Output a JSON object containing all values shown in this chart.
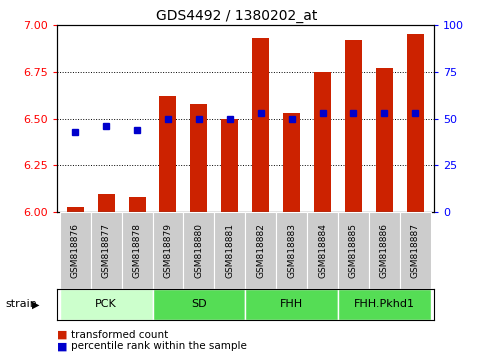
{
  "title": "GDS4492 / 1380202_at",
  "samples": [
    "GSM818876",
    "GSM818877",
    "GSM818878",
    "GSM818879",
    "GSM818880",
    "GSM818881",
    "GSM818882",
    "GSM818883",
    "GSM818884",
    "GSM818885",
    "GSM818886",
    "GSM818887"
  ],
  "transformed_counts": [
    6.03,
    6.1,
    6.08,
    6.62,
    6.58,
    6.5,
    6.93,
    6.53,
    6.75,
    6.92,
    6.77,
    6.95
  ],
  "percentile_ranks": [
    43,
    46,
    44,
    50,
    50,
    50,
    53,
    50,
    53,
    53,
    53,
    53
  ],
  "ylim_left": [
    6.0,
    7.0
  ],
  "ylim_right": [
    0,
    100
  ],
  "yticks_left": [
    6.0,
    6.25,
    6.5,
    6.75,
    7.0
  ],
  "yticks_right": [
    0,
    25,
    50,
    75,
    100
  ],
  "bar_color": "#cc2200",
  "dot_color": "#0000cc",
  "bar_width": 0.55,
  "legend_items": [
    "transformed count",
    "percentile rank within the sample"
  ],
  "legend_colors": [
    "#cc2200",
    "#0000cc"
  ],
  "groups": [
    {
      "label": "PCK",
      "start": 0,
      "end": 2,
      "color": "#ccffcc"
    },
    {
      "label": "SD",
      "start": 3,
      "end": 5,
      "color": "#55dd55"
    },
    {
      "label": "FHH",
      "start": 6,
      "end": 8,
      "color": "#55dd55"
    },
    {
      "label": "FHH.Pkhd1",
      "start": 9,
      "end": 11,
      "color": "#55dd55"
    }
  ],
  "tick_area_color": "#cccccc",
  "group_row_color": "#55dd55",
  "pck_color": "#ccffcc"
}
